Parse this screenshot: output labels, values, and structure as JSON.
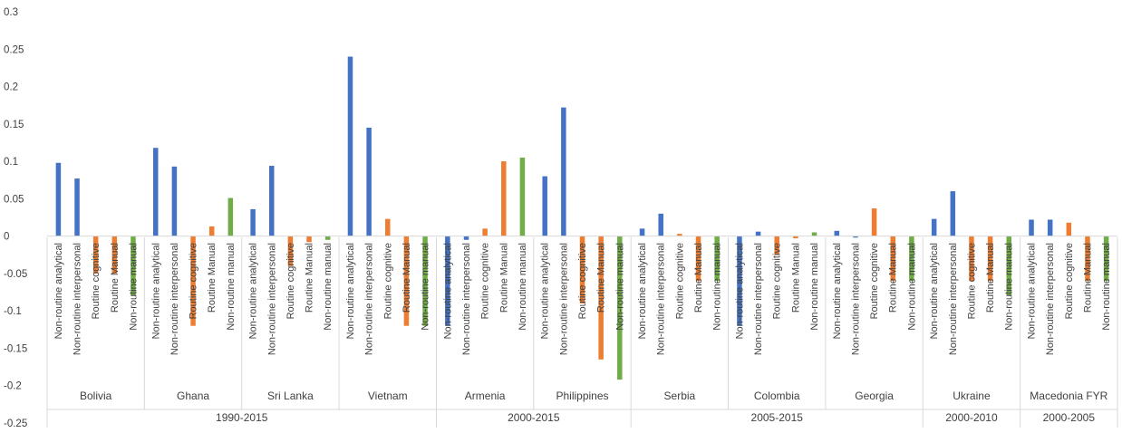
{
  "chart_data": {
    "type": "bar",
    "ylim": [
      -0.25,
      0.3
    ],
    "yticks": [
      "0.3",
      "0.25",
      "0.2",
      "0.15",
      "0.1",
      "0.05",
      "0",
      "-0.05",
      "-0.1",
      "-0.15",
      "-0.2",
      "-0.25"
    ],
    "ytick_values": [
      0.3,
      0.25,
      0.2,
      0.15,
      0.1,
      0.05,
      0,
      -0.05,
      -0.1,
      -0.15,
      -0.2,
      -0.25
    ],
    "grid": false,
    "categories": [
      "Non-routine analytical",
      "Non-routine interpersonal",
      "Routine cognitive",
      "Routine Manual",
      "Non-routine manual"
    ],
    "category_colors": [
      "#4472C4",
      "#4472C4",
      "#ED7D31",
      "#ED7D31",
      "#70AD47"
    ],
    "countries": [
      {
        "name": "Bolivia",
        "values": [
          0.098,
          0.077,
          -0.05,
          -0.05,
          -0.08
        ]
      },
      {
        "name": "Ghana",
        "values": [
          0.118,
          0.093,
          -0.12,
          0.013,
          0.051
        ]
      },
      {
        "name": "Sri Lanka",
        "values": [
          0.036,
          0.094,
          -0.04,
          -0.008,
          -0.005
        ]
      },
      {
        "name": "Vietnam",
        "values": [
          0.24,
          0.145,
          0.023,
          -0.12,
          -0.12
        ]
      },
      {
        "name": "Armenia",
        "values": [
          -0.12,
          -0.005,
          0.01,
          0.1,
          0.105
        ]
      },
      {
        "name": "Philippines",
        "values": [
          0.08,
          0.172,
          -0.09,
          -0.165,
          -0.192
        ]
      },
      {
        "name": "Serbia",
        "values": [
          0.01,
          0.03,
          0.003,
          -0.06,
          -0.06
        ]
      },
      {
        "name": "Colombia",
        "values": [
          -0.12,
          0.006,
          -0.025,
          -0.003,
          0.005
        ]
      },
      {
        "name": "Georgia",
        "values": [
          0.007,
          -0.002,
          0.037,
          -0.06,
          -0.06
        ]
      },
      {
        "name": "Ukraine",
        "values": [
          0.023,
          0.06,
          -0.06,
          -0.06,
          -0.08
        ]
      },
      {
        "name": "Macedonia FYR",
        "values": [
          0.022,
          0.022,
          0.018,
          -0.06,
          -0.06
        ]
      }
    ],
    "periods": [
      {
        "label": "1990-2015",
        "count": 4
      },
      {
        "label": "2000-2015",
        "count": 2
      },
      {
        "label": "2005-2015",
        "count": 3
      },
      {
        "label": "2000-2010",
        "count": 1
      },
      {
        "label": "2000-2005",
        "count": 1
      }
    ]
  }
}
